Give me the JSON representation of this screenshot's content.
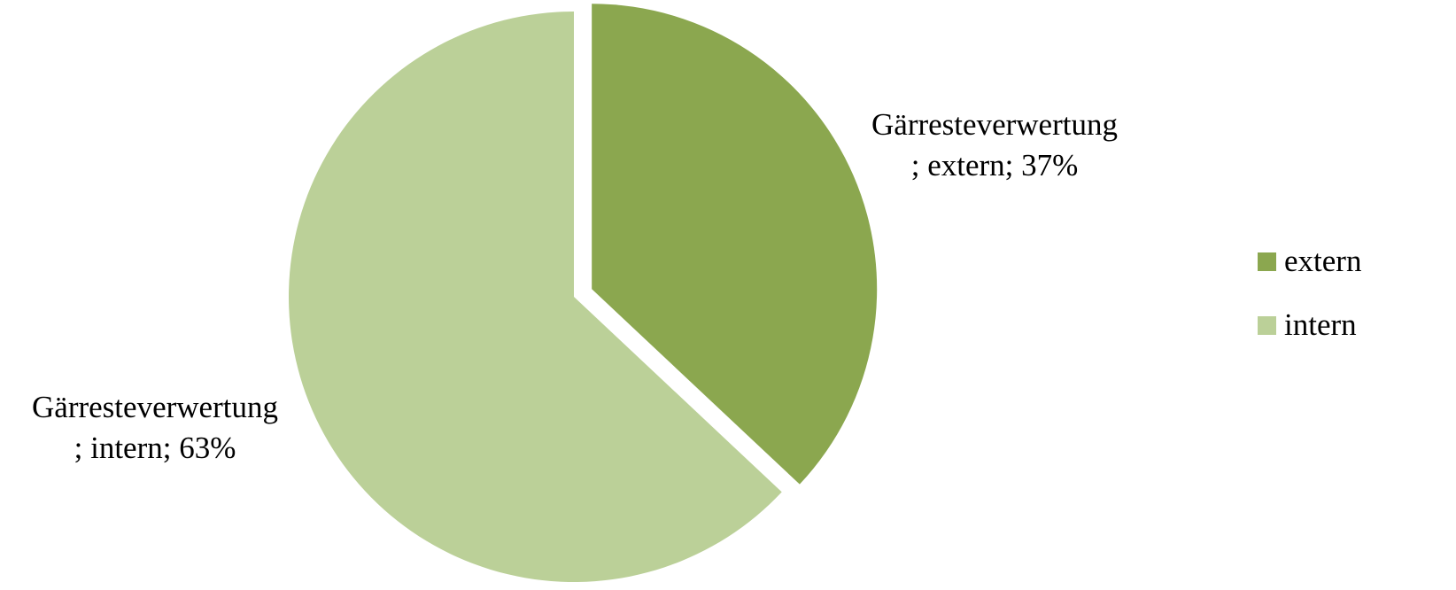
{
  "chart_data": {
    "type": "pie",
    "slices": [
      {
        "category": "extern",
        "value": 37,
        "label_line1": "Gärresteverwertung",
        "label_line2": "; extern; 37%",
        "color": "#8BA74F"
      },
      {
        "category": "intern",
        "value": 63,
        "label_line1": "Gärresteverwertung",
        "label_line2": "; intern; 63%",
        "color": "#BBD098"
      }
    ],
    "legend": {
      "placement": "right",
      "entries": [
        {
          "name": "extern",
          "color": "#8BA74F"
        },
        {
          "name": "intern",
          "color": "#BBD098"
        }
      ]
    },
    "exploded_slice": "extern"
  }
}
